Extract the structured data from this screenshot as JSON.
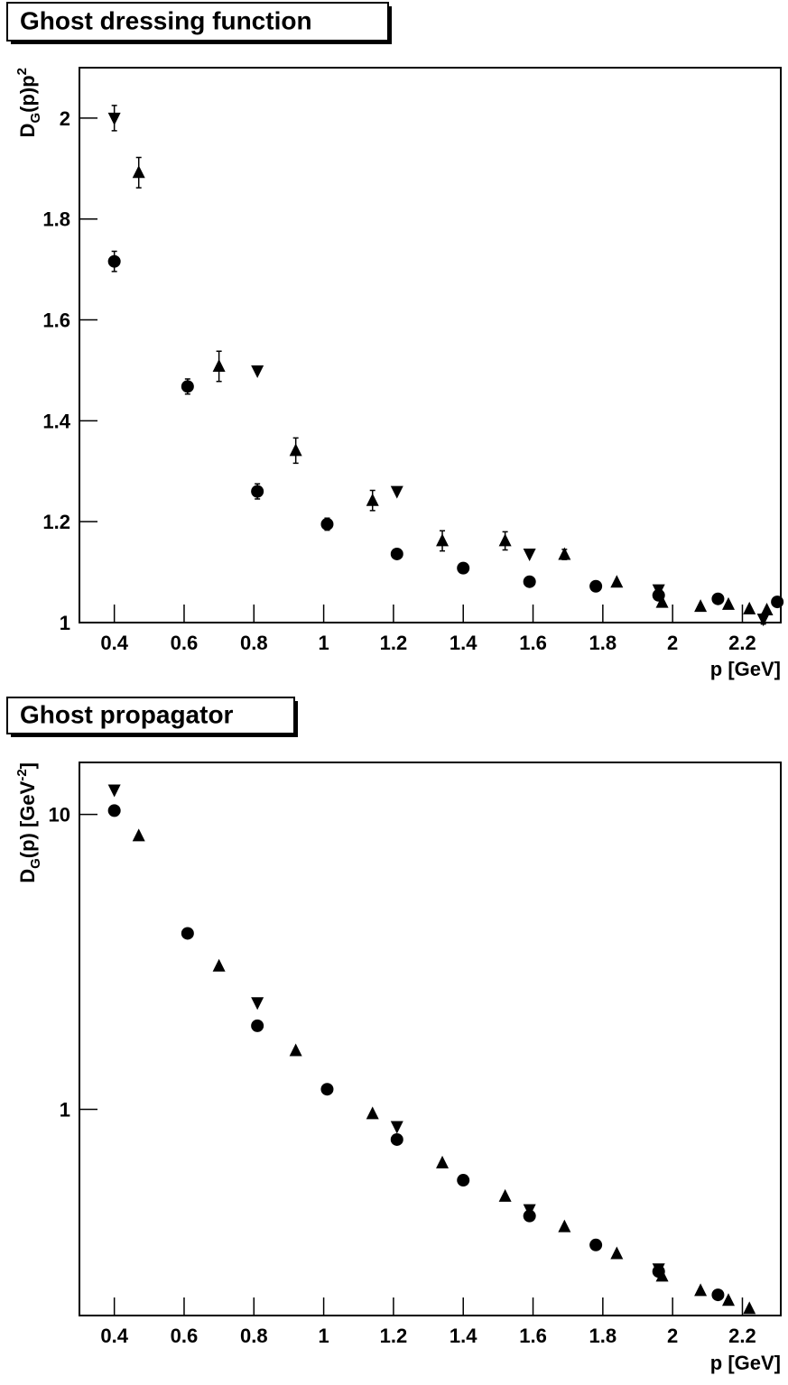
{
  "chart_data": [
    {
      "type": "scatter",
      "title": "Ghost dressing function",
      "xlabel": "p [GeV]",
      "ylabel": [
        "D",
        "G",
        "(p)p",
        "2"
      ],
      "log_y": false,
      "xlim": [
        0.3,
        2.31
      ],
      "ylim": [
        1,
        2.1
      ],
      "xticks": [
        0.4,
        0.6,
        0.8,
        1,
        1.2,
        1.4,
        1.6,
        1.8,
        2,
        2.2
      ],
      "yticks": [
        1,
        1.2,
        1.4,
        1.6,
        1.8,
        2
      ],
      "series": [
        {
          "marker": "circle",
          "color": "#000000",
          "x": [
            0.4,
            0.61,
            0.81,
            1.01,
            1.21,
            1.4,
            1.59,
            1.78,
            1.96,
            2.13,
            2.3
          ],
          "values": [
            1.716,
            1.468,
            1.26,
            1.195,
            1.136,
            1.108,
            1.081,
            1.072,
            1.054,
            1.047,
            1.041
          ],
          "errors": [
            0.02,
            0.015,
            0.015,
            0.012,
            null,
            null,
            null,
            null,
            null,
            null,
            null
          ]
        },
        {
          "marker": "triangle-up",
          "color": "#000000",
          "x": [
            0.47,
            0.7,
            0.92,
            1.14,
            1.34,
            1.52,
            1.69,
            1.84,
            1.97,
            2.08,
            2.16,
            2.22,
            2.27
          ],
          "values": [
            1.892,
            1.508,
            1.341,
            1.242,
            1.162,
            1.162,
            1.135,
            1.08,
            1.04,
            1.032,
            1.036,
            1.027,
            1.025
          ],
          "errors": [
            0.03,
            0.03,
            0.025,
            0.02,
            0.02,
            0.018,
            0.01,
            null,
            null,
            null,
            null,
            null,
            null
          ]
        },
        {
          "marker": "triangle-down",
          "color": "#000000",
          "x": [
            0.4,
            0.81,
            1.21,
            1.59,
            1.96,
            2.26
          ],
          "values": [
            2.0,
            1.499,
            1.26,
            1.136,
            1.065,
            1.007
          ],
          "errors": [
            0.025,
            null,
            null,
            null,
            null,
            0.01
          ]
        }
      ]
    },
    {
      "type": "scatter",
      "title": "Ghost propagator",
      "xlabel": "p [GeV]",
      "ylabel": [
        "D",
        "G",
        "(p) [GeV",
        "-2",
        "]"
      ],
      "log_y": true,
      "xlim": [
        0.3,
        2.31
      ],
      "ylim": [
        0.2,
        15
      ],
      "xticks": [
        0.4,
        0.6,
        0.8,
        1,
        1.2,
        1.4,
        1.6,
        1.8,
        2,
        2.2
      ],
      "yticks": [
        1,
        10
      ],
      "series": [
        {
          "marker": "circle",
          "color": "#000000",
          "x": [
            0.4,
            0.61,
            0.81,
            1.01,
            1.21,
            1.4,
            1.59,
            1.78,
            1.96,
            2.13
          ],
          "values": [
            10.3,
            3.95,
            1.92,
            1.17,
            0.79,
            0.575,
            0.435,
            0.347,
            0.282,
            0.235
          ]
        },
        {
          "marker": "triangle-up",
          "color": "#000000",
          "x": [
            0.47,
            0.7,
            0.92,
            1.14,
            1.34,
            1.52,
            1.69,
            1.84,
            1.97,
            2.08,
            2.16,
            2.22
          ],
          "values": [
            8.46,
            3.06,
            1.58,
            0.966,
            0.658,
            0.507,
            0.4,
            0.324,
            0.272,
            0.243,
            0.225,
            0.211
          ]
        },
        {
          "marker": "triangle-down",
          "color": "#000000",
          "x": [
            0.4,
            0.81,
            1.21,
            1.59,
            1.96
          ],
          "values": [
            12.1,
            2.3,
            0.875,
            0.457,
            0.288
          ]
        }
      ]
    }
  ]
}
